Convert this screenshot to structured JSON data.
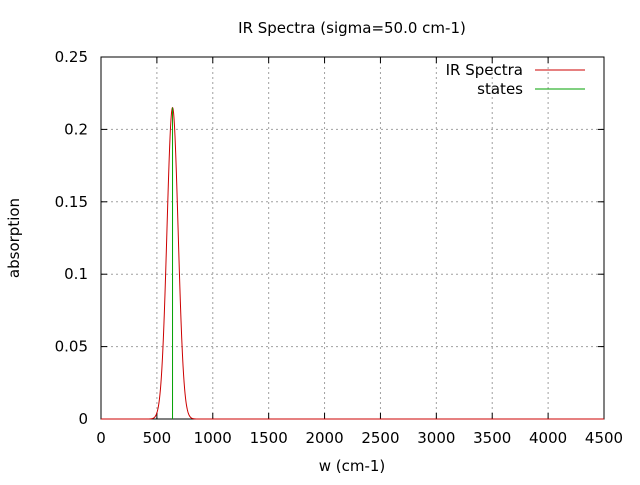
{
  "chart_data": {
    "type": "line",
    "title": "IR Spectra (sigma=50.0 cm-1)",
    "xlabel": "w (cm-1)",
    "ylabel": "absorption",
    "xlim": [
      0,
      4500
    ],
    "ylim": [
      0,
      0.25
    ],
    "x_ticks": [
      0,
      500,
      1000,
      1500,
      2000,
      2500,
      3000,
      3500,
      4000,
      4500
    ],
    "x_tick_labels": [
      "0",
      "500",
      "1000",
      "1500",
      "2000",
      "2500",
      "3000",
      "3500",
      "4000",
      "4500"
    ],
    "y_ticks": [
      0,
      0.05,
      0.1,
      0.15,
      0.2,
      0.25
    ],
    "y_tick_labels": [
      "0",
      "0.05",
      "0.1",
      "0.15",
      "0.2",
      "0.25"
    ],
    "grid": true,
    "legend_position": "top-right",
    "series": [
      {
        "name": "IR Spectra",
        "color": "#cc0000",
        "style": "line",
        "peak_center": 640,
        "peak_height": 0.215,
        "sigma": 50.0
      },
      {
        "name": "states",
        "color": "#00a000",
        "style": "impulse",
        "x": [
          640
        ],
        "y": [
          0.215
        ]
      }
    ]
  }
}
